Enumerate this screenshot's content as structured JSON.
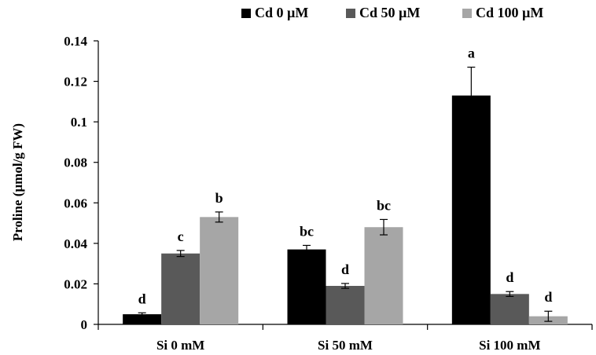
{
  "chart_data": {
    "type": "bar",
    "title": "",
    "xlabel": "",
    "ylabel": "Proline (µmol/g FW)",
    "ylim": [
      0,
      0.14
    ],
    "yticks": [
      0,
      0.02,
      0.04,
      0.06,
      0.08,
      0.1,
      0.12,
      0.14
    ],
    "ytick_labels": [
      "0",
      "0.02",
      "0.04",
      "0.06",
      "0.08",
      "0.1",
      "0.12",
      "0.14"
    ],
    "categories": [
      "Si 0 mM",
      "Si 50 mM",
      "Si 100 mM"
    ],
    "legend_position": "top",
    "grid": false,
    "series": [
      {
        "name": "Cd 0 µM",
        "color": "#000000",
        "values": [
          0.005,
          0.037,
          0.113
        ],
        "errors": [
          0.0007,
          0.002,
          0.014
        ],
        "labels": [
          "d",
          "bc",
          "a"
        ]
      },
      {
        "name": "Cd 50 µM",
        "color": "#595959",
        "values": [
          0.035,
          0.019,
          0.015
        ],
        "errors": [
          0.0015,
          0.0012,
          0.0012
        ],
        "labels": [
          "c",
          "d",
          "d"
        ]
      },
      {
        "name": "Cd 100 µM",
        "color": "#a6a6a6",
        "values": [
          0.053,
          0.048,
          0.004
        ],
        "errors": [
          0.0025,
          0.0038,
          0.0025
        ],
        "labels": [
          "b",
          "bc",
          "d"
        ]
      }
    ]
  }
}
